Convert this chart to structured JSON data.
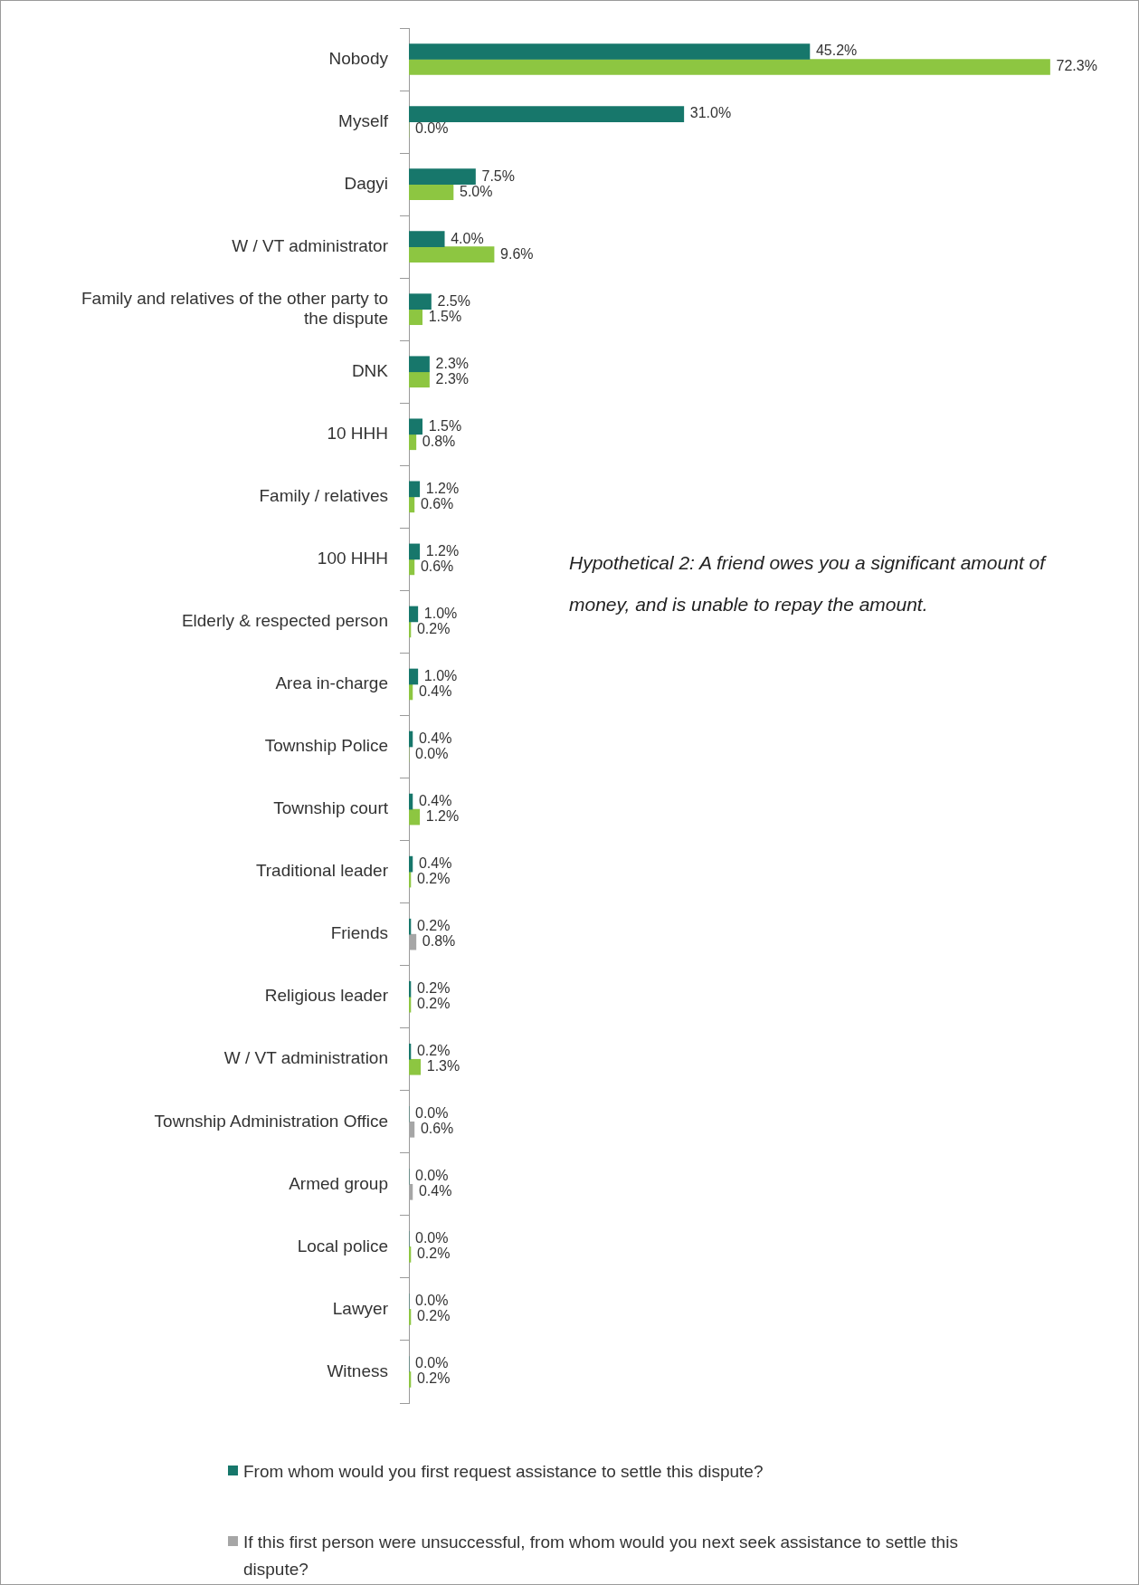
{
  "chart_data": {
    "type": "bar",
    "orientation": "horizontal",
    "categories": [
      "Nobody",
      "Myself",
      "Dagyi",
      "W / VT administrator",
      "Family and relatives of the other party to the dispute",
      "DNK",
      "10 HHH",
      "Family / relatives",
      "100 HHH",
      "Elderly & respected person",
      "Area in-charge",
      "Township Police",
      "Township court",
      "Traditional leader",
      "Friends",
      "Religious leader",
      "W / VT administration",
      "Township Administration Office",
      "Armed group",
      "Local police",
      "Lawyer",
      "Witness"
    ],
    "series": [
      {
        "name": "From whom would you first request assistance to settle this dispute?",
        "color": "#17776b",
        "values": [
          45.2,
          31.0,
          7.5,
          4.0,
          2.5,
          2.3,
          1.5,
          1.2,
          1.2,
          1.0,
          1.0,
          0.4,
          0.4,
          0.4,
          0.2,
          0.2,
          0.2,
          0.0,
          0.0,
          0.0,
          0.0,
          0.0
        ],
        "value_labels": [
          "45.2%",
          "31.0%",
          "7.5%",
          "4.0%",
          "2.5%",
          "2.3%",
          "1.5%",
          "1.2%",
          "1.2%",
          "1.0%",
          "1.0%",
          "0.4%",
          "0.4%",
          "0.4%",
          "0.2%",
          "0.2%",
          "0.2%",
          "0.0%",
          "0.0%",
          "0.0%",
          "0.0%",
          "0.0%"
        ]
      },
      {
        "name": "If this first person were unsuccessful, from whom would you next seek assistance to settle this dispute?",
        "color": "#a6a6a6",
        "colors": [
          "#8dc641",
          "#8dc641",
          "#8dc641",
          "#8dc641",
          "#8dc641",
          "#8dc641",
          "#8dc641",
          "#8dc641",
          "#8dc641",
          "#8dc641",
          "#8dc641",
          "#8dc641",
          "#8dc641",
          "#8dc641",
          "#a6a6a6",
          "#8dc641",
          "#8dc641",
          "#a6a6a6",
          "#a6a6a6",
          "#8dc641",
          "#8dc641",
          "#8dc641"
        ],
        "values": [
          72.3,
          0.0,
          5.0,
          9.6,
          1.5,
          2.3,
          0.8,
          0.6,
          0.6,
          0.2,
          0.4,
          0.0,
          1.2,
          0.2,
          0.8,
          0.2,
          1.3,
          0.6,
          0.4,
          0.2,
          0.2,
          0.2
        ],
        "value_labels": [
          "72.3%",
          "0.0%",
          "5.0%",
          "9.6%",
          "1.5%",
          "2.3%",
          "0.8%",
          "0.6%",
          "0.6%",
          "0.2%",
          "0.4%",
          "0.0%",
          "1.2%",
          "0.2%",
          "0.8%",
          "0.2%",
          "1.3%",
          "0.6%",
          "0.4%",
          "0.2%",
          "0.2%",
          "0.2%"
        ]
      }
    ],
    "tick_labels": "y",
    "legend": "bottom",
    "annotations": [
      "Hypothetical 2: A friend owes you a significant amount of money, and is unable to repay the amount."
    ]
  }
}
